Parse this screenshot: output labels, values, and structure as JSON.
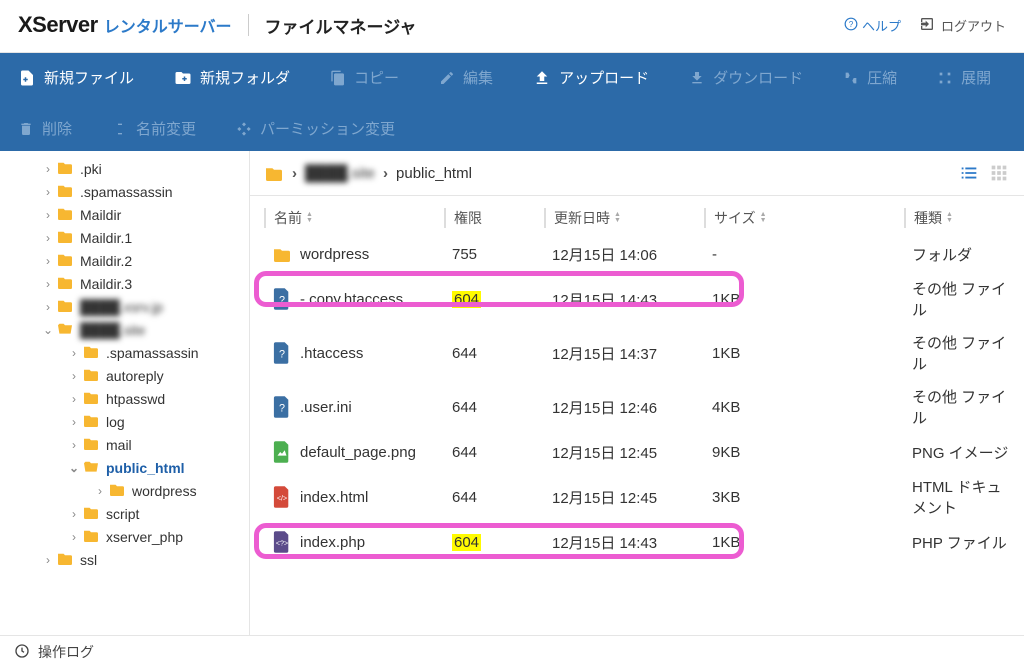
{
  "header": {
    "logo_main": "XServer",
    "logo_sub": "レンタルサーバー",
    "app_title": "ファイルマネージャ",
    "help": "ヘルプ",
    "logout": "ログアウト"
  },
  "toolbar": {
    "new_file": "新規ファイル",
    "new_folder": "新規フォルダ",
    "copy": "コピー",
    "edit": "編集",
    "upload": "アップロード",
    "download": "ダウンロード",
    "compress": "圧縮",
    "expand": "展開",
    "delete": "削除",
    "rename": "名前変更",
    "permission": "パーミッション変更"
  },
  "tree": {
    "items": [
      {
        "label": ".pki",
        "indent": 40,
        "arrow": "›"
      },
      {
        "label": ".spamassassin",
        "indent": 40,
        "arrow": "›"
      },
      {
        "label": "Maildir",
        "indent": 40,
        "arrow": "›"
      },
      {
        "label": "Maildir.1",
        "indent": 40,
        "arrow": "›"
      },
      {
        "label": "Maildir.2",
        "indent": 40,
        "arrow": "›"
      },
      {
        "label": "Maildir.3",
        "indent": 40,
        "arrow": "›"
      },
      {
        "label": "████.xsrv.jp",
        "indent": 40,
        "arrow": "›",
        "blur": true
      },
      {
        "label": "████.site",
        "indent": 40,
        "arrow": "⌄",
        "blur": true,
        "open": true
      },
      {
        "label": ".spamassassin",
        "indent": 66,
        "arrow": "›"
      },
      {
        "label": "autoreply",
        "indent": 66,
        "arrow": "›"
      },
      {
        "label": "htpasswd",
        "indent": 66,
        "arrow": "›"
      },
      {
        "label": "log",
        "indent": 66,
        "arrow": "›"
      },
      {
        "label": "mail",
        "indent": 66,
        "arrow": "›"
      },
      {
        "label": "public_html",
        "indent": 66,
        "arrow": "⌄",
        "active": true,
        "open": true
      },
      {
        "label": "wordpress",
        "indent": 92,
        "arrow": "›"
      },
      {
        "label": "script",
        "indent": 66,
        "arrow": "›"
      },
      {
        "label": "xserver_php",
        "indent": 66,
        "arrow": "›"
      },
      {
        "label": "ssl",
        "indent": 40,
        "arrow": "›"
      }
    ]
  },
  "breadcrumb": {
    "crumb1": "████.site",
    "crumb2": "public_html"
  },
  "columns": {
    "name": "名前",
    "perm": "権限",
    "date": "更新日時",
    "size": "サイズ",
    "type": "種類"
  },
  "files": [
    {
      "icon": "folder",
      "name": "wordpress",
      "perm": "755",
      "date": "12月15日 14:06",
      "size": "-",
      "type": "フォルダ"
    },
    {
      "icon": "question",
      "name": "- copy.htaccess",
      "perm": "604",
      "perm_hl": true,
      "date": "12月15日 14:43",
      "size": "1KB",
      "type": "その他 ファイル",
      "ring": true
    },
    {
      "icon": "question",
      "name": ".htaccess",
      "perm": "644",
      "date": "12月15日 14:37",
      "size": "1KB",
      "type": "その他 ファイル"
    },
    {
      "icon": "question",
      "name": ".user.ini",
      "perm": "644",
      "date": "12月15日 12:46",
      "size": "4KB",
      "type": "その他 ファイル"
    },
    {
      "icon": "image",
      "name": "default_page.png",
      "perm": "644",
      "date": "12月15日 12:45",
      "size": "9KB",
      "type": "PNG イメージ"
    },
    {
      "icon": "html",
      "name": "index.html",
      "perm": "644",
      "date": "12月15日 12:45",
      "size": "3KB",
      "type": "HTML ドキュメント"
    },
    {
      "icon": "php",
      "name": "index.php",
      "perm": "604",
      "perm_hl": true,
      "date": "12月15日 14:43",
      "size": "1KB",
      "type": "PHP ファイル",
      "ring": true
    }
  ],
  "footer": {
    "log": "操作ログ"
  },
  "colors": {
    "toolbar_bg": "#2c6aa8",
    "toolbar_disabled": "#7fa7cf",
    "link_blue": "#2c7ac9",
    "folder_yellow": "#f7b731",
    "highlight_ring": "#ec5cd1",
    "perm_highlight": "#fffb00",
    "icon_blue": "#3b6fa3",
    "icon_green": "#4caf50",
    "icon_red": "#d44a3a",
    "icon_purple": "#5b4b8a"
  }
}
